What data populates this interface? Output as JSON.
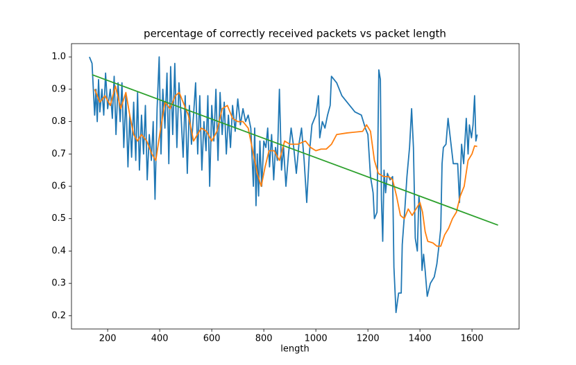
{
  "chart_data": {
    "type": "line",
    "title": "percentage of correctly received packets vs packet length",
    "xlabel": "length",
    "xlim": [
      61,
      1781
    ],
    "ylim": [
      0.159,
      1.041
    ],
    "xticks": [
      200,
      400,
      600,
      800,
      1000,
      1200,
      1400,
      1600
    ],
    "yticks": [
      0.2,
      0.3,
      0.4,
      0.5,
      0.6,
      0.7,
      0.8,
      0.9,
      {
        "value": 1,
        "label": "1.0"
      }
    ],
    "series": [
      {
        "color": "#1f77b4",
        "x": [
          130,
          140,
          150,
          155,
          160,
          165,
          170,
          178,
          185,
          192,
          200,
          210,
          218,
          225,
          232,
          240,
          248,
          255,
          262,
          270,
          278,
          285,
          292,
          300,
          308,
          315,
          322,
          330,
          338,
          345,
          352,
          360,
          368,
          375,
          382,
          390,
          398,
          405,
          412,
          420,
          428,
          435,
          442,
          450,
          458,
          466,
          474,
          482,
          490,
          498,
          506,
          514,
          522,
          530,
          538,
          546,
          554,
          562,
          570,
          578,
          585,
          592,
          600,
          608,
          616,
          624,
          632,
          640,
          648,
          656,
          664,
          672,
          680,
          690,
          700,
          710,
          720,
          730,
          740,
          750,
          760,
          765,
          770,
          775,
          780,
          785,
          792,
          800,
          808,
          815,
          822,
          830,
          838,
          845,
          852,
          860,
          868,
          876,
          885,
          895,
          905,
          915,
          925,
          935,
          945,
          955,
          965,
          975,
          985,
          1000,
          1010,
          1015,
          1025,
          1035,
          1045,
          1055,
          1060,
          1080,
          1100,
          1120,
          1150,
          1175,
          1190,
          1200,
          1210,
          1220,
          1225,
          1235,
          1242,
          1248,
          1252,
          1257,
          1262,
          1268,
          1275,
          1285,
          1295,
          1300,
          1308,
          1318,
          1328,
          1332,
          1342,
          1350,
          1360,
          1368,
          1375,
          1382,
          1390,
          1396,
          1402,
          1408,
          1414,
          1420,
          1428,
          1440,
          1455,
          1465,
          1475,
          1480,
          1485,
          1490,
          1500,
          1508,
          1518,
          1528,
          1545,
          1552,
          1560,
          1568,
          1578,
          1585,
          1590,
          1598,
          1604,
          1610,
          1615,
          1620
        ],
        "values": [
          1.0,
          0.98,
          0.82,
          0.9,
          0.8,
          0.93,
          0.83,
          0.9,
          0.82,
          0.95,
          0.84,
          0.9,
          0.81,
          0.94,
          0.76,
          0.92,
          0.8,
          0.92,
          0.72,
          0.88,
          0.66,
          0.82,
          0.69,
          0.86,
          0.68,
          0.89,
          0.65,
          0.82,
          0.7,
          0.85,
          0.62,
          0.76,
          0.68,
          0.8,
          0.56,
          0.84,
          1.0,
          0.7,
          0.9,
          0.78,
          0.95,
          0.67,
          0.97,
          0.76,
          0.98,
          0.72,
          0.92,
          0.82,
          0.69,
          0.88,
          0.64,
          0.85,
          0.73,
          0.82,
          0.92,
          0.7,
          0.88,
          0.65,
          0.8,
          0.71,
          0.88,
          0.6,
          0.85,
          0.74,
          0.9,
          0.68,
          0.89,
          0.76,
          0.86,
          0.7,
          0.82,
          0.72,
          0.85,
          0.77,
          0.87,
          0.79,
          0.84,
          0.8,
          0.82,
          0.78,
          0.6,
          0.78,
          0.54,
          0.7,
          0.57,
          0.74,
          0.6,
          0.74,
          0.72,
          0.78,
          0.66,
          0.76,
          0.62,
          0.72,
          0.68,
          0.9,
          0.65,
          0.72,
          0.6,
          0.7,
          0.78,
          0.72,
          0.64,
          0.73,
          0.78,
          0.68,
          0.55,
          0.7,
          0.79,
          0.82,
          0.88,
          0.75,
          0.8,
          0.78,
          0.82,
          0.85,
          0.94,
          0.92,
          0.88,
          0.86,
          0.83,
          0.82,
          0.78,
          0.76,
          0.63,
          0.58,
          0.5,
          0.52,
          0.96,
          0.93,
          0.56,
          0.43,
          0.65,
          0.58,
          0.64,
          0.62,
          0.63,
          0.35,
          0.21,
          0.27,
          0.27,
          0.42,
          0.53,
          0.63,
          0.72,
          0.84,
          0.72,
          0.44,
          0.4,
          0.57,
          0.52,
          0.34,
          0.39,
          0.34,
          0.26,
          0.3,
          0.32,
          0.36,
          0.43,
          0.47,
          0.67,
          0.72,
          0.73,
          0.81,
          0.74,
          0.67,
          0.67,
          0.55,
          0.73,
          0.67,
          0.81,
          0.7,
          0.79,
          0.75,
          0.79,
          0.88,
          0.74,
          0.76
        ]
      },
      {
        "color": "#ff7f0e",
        "x": [
          150,
          170,
          190,
          210,
          230,
          250,
          270,
          285,
          300,
          315,
          330,
          350,
          370,
          385,
          400,
          420,
          440,
          460,
          475,
          490,
          510,
          530,
          545,
          560,
          580,
          600,
          620,
          640,
          660,
          680,
          700,
          720,
          740,
          760,
          775,
          790,
          805,
          820,
          840,
          860,
          880,
          900,
          930,
          960,
          980,
          1000,
          1020,
          1040,
          1060,
          1080,
          1120,
          1180,
          1195,
          1210,
          1225,
          1240,
          1260,
          1280,
          1295,
          1310,
          1325,
          1340,
          1355,
          1370,
          1385,
          1400,
          1410,
          1420,
          1430,
          1450,
          1465,
          1480,
          1495,
          1510,
          1525,
          1540,
          1555,
          1570,
          1585,
          1600,
          1610,
          1620
        ],
        "values": [
          0.9,
          0.86,
          0.88,
          0.85,
          0.91,
          0.84,
          0.89,
          0.82,
          0.76,
          0.74,
          0.76,
          0.74,
          0.7,
          0.68,
          0.76,
          0.86,
          0.84,
          0.88,
          0.89,
          0.86,
          0.82,
          0.74,
          0.76,
          0.78,
          0.77,
          0.74,
          0.77,
          0.84,
          0.85,
          0.81,
          0.8,
          0.8,
          0.78,
          0.7,
          0.64,
          0.6,
          0.66,
          0.71,
          0.71,
          0.68,
          0.74,
          0.73,
          0.73,
          0.74,
          0.72,
          0.71,
          0.715,
          0.715,
          0.73,
          0.76,
          0.765,
          0.77,
          0.79,
          0.77,
          0.68,
          0.64,
          0.63,
          0.63,
          0.62,
          0.57,
          0.51,
          0.5,
          0.53,
          0.51,
          0.53,
          0.55,
          0.52,
          0.46,
          0.43,
          0.425,
          0.415,
          0.415,
          0.45,
          0.47,
          0.5,
          0.52,
          0.57,
          0.6,
          0.68,
          0.7,
          0.725,
          0.723
        ]
      },
      {
        "color": "#2ca02c",
        "x": [
          140,
          1700
        ],
        "values": [
          0.945,
          0.48
        ]
      }
    ]
  }
}
